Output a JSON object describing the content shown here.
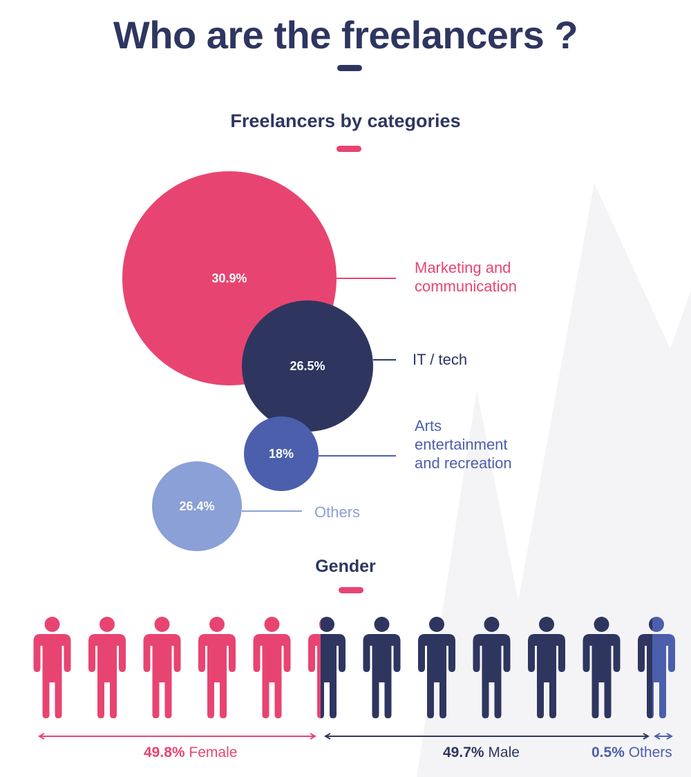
{
  "title": "Who are the freelancers ?",
  "colors": {
    "pink": "#e84471",
    "navy": "#2e3660",
    "blue": "#4b5fad",
    "light_blue": "#8aa0d6"
  },
  "chart_data": [
    {
      "type": "bubble",
      "title": "Freelancers by categories",
      "series": [
        {
          "label": "Marketing and communication",
          "value": 30.9,
          "value_label": "30.9%",
          "color": "#e84471"
        },
        {
          "label": "IT / tech",
          "value": 26.5,
          "value_label": "26.5%",
          "color": "#2e3660"
        },
        {
          "label": "Arts entertainment and recreation",
          "value": 18,
          "value_label": "18%",
          "color": "#4b5fad"
        },
        {
          "label": "Others",
          "value": 26.4,
          "value_label": "26.4%",
          "color": "#8aa0d6"
        }
      ]
    },
    {
      "type": "pictogram",
      "title": "Gender",
      "icon": "person-icon",
      "icon_count": 12,
      "series": [
        {
          "name": "Female",
          "value": 49.8,
          "value_label": "49.8%",
          "color": "#e84471"
        },
        {
          "name": "Male",
          "value": 49.7,
          "value_label": "49.7%",
          "color": "#2e3660"
        },
        {
          "name": "Others",
          "value": 0.5,
          "value_label": "0.5%",
          "color": "#4b5fad"
        }
      ]
    }
  ]
}
